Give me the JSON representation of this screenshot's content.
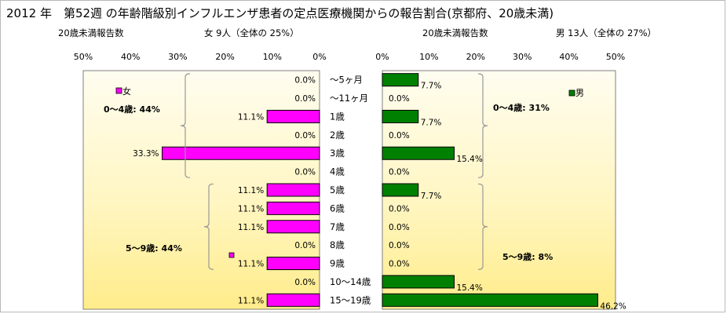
{
  "title": "2012 年　第52週 の年齢階級別インフルエンザ患者の定点医療機関からの報告割合(京都府、20歳未満)",
  "left_header": {
    "count_label": "20歳未満報告数",
    "summary": "女  9人（全体の  25%）"
  },
  "right_header": {
    "count_label": "20歳未満報告数",
    "summary": "男  13人（全体の  27%）"
  },
  "chart_data": [
    {
      "type": "bar",
      "orientation": "horizontal",
      "direction": "right-to-left",
      "categories": [
        "～5ヶ月",
        "～11ヶ月",
        "1歳",
        "2歳",
        "3歳",
        "4歳",
        "5歳",
        "6歳",
        "7歳",
        "8歳",
        "9歳",
        "10～14歳",
        "15～19歳"
      ],
      "series": [
        {
          "name": "女",
          "values": [
            0.0,
            0.0,
            11.1,
            0.0,
            33.3,
            0.0,
            11.1,
            11.1,
            11.1,
            0.0,
            11.1,
            0.0,
            11.1
          ]
        }
      ],
      "value_labels": [
        "0.0%",
        "0.0%",
        "11.1%",
        "0.0%",
        "33.3%",
        "0.0%",
        "11.1%",
        "11.1%",
        "11.1%",
        "0.0%",
        "11.1%",
        "0.0%",
        "11.1%"
      ],
      "xlim": [
        0,
        50
      ],
      "xticks": [
        "50%",
        "40%",
        "30%",
        "20%",
        "10%",
        "0%"
      ],
      "color": "#ff00ff",
      "legend": "top-left",
      "annotations": [
        "0～4歳:  44%",
        "5～9歳:  44%"
      ]
    },
    {
      "type": "bar",
      "orientation": "horizontal",
      "direction": "left-to-right",
      "categories": [
        "～5ヶ月",
        "～11ヶ月",
        "1歳",
        "2歳",
        "3歳",
        "4歳",
        "5歳",
        "6歳",
        "7歳",
        "8歳",
        "9歳",
        "10～14歳",
        "15～19歳"
      ],
      "series": [
        {
          "name": "男",
          "values": [
            7.7,
            0.0,
            7.7,
            0.0,
            15.4,
            0.0,
            7.7,
            0.0,
            0.0,
            0.0,
            0.0,
            15.4,
            46.2
          ]
        }
      ],
      "value_labels": [
        "7.7%",
        "0.0%",
        "7.7%",
        "0.0%",
        "15.4%",
        "0.0%",
        "7.7%",
        "0.0%",
        "0.0%",
        "0.0%",
        "0.0%",
        "15.4%",
        "46.2%"
      ],
      "xlim": [
        0,
        50
      ],
      "xticks": [
        "0%",
        "10%",
        "20%",
        "30%",
        "40%",
        "50%"
      ],
      "color": "#008000",
      "legend": "top-right",
      "annotations": [
        "0～4歳:  31%",
        "5～9歳:  8%"
      ]
    }
  ]
}
